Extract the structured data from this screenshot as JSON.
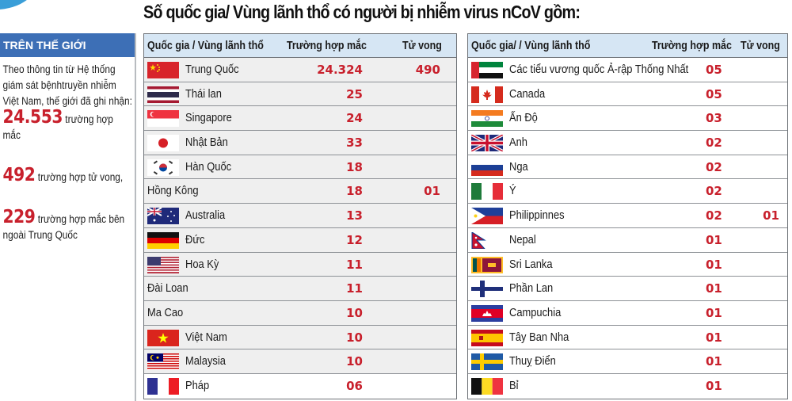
{
  "title": "Số quốc gia/ Vùng lãnh thổ có người bị nhiễm virus nCoV gồm:",
  "sidebar": {
    "header": "TRÊN THẾ GIỚI",
    "intro": "Theo thông tin từ Hệ thống giám sát bệnhtruyền nhiễm Việt Nam, thế giới đã ghi nhận:",
    "stats": [
      {
        "value": "24.553",
        "label": "trường hợp mắc"
      },
      {
        "value": "492",
        "label": "trường hợp  tử vong,"
      },
      {
        "value": "229",
        "label": "trường hợp  mắc bên ngoài Trung Quốc"
      }
    ]
  },
  "colors": {
    "accent_red": "#c8202c",
    "header_blue": "#3d6fb6",
    "table_header_bg": "#d6e6f4",
    "row_grey": "#efefef"
  },
  "left_table": {
    "headers": [
      "Quốc gia / Vùng lãnh thổ",
      "Trường hợp mắc",
      "Tử vong"
    ],
    "rows": [
      {
        "flag": "china-flag",
        "name": "Trung Quốc",
        "cases": "24.324",
        "deaths": "490"
      },
      {
        "flag": "thailand-flag",
        "name": "Thái lan",
        "cases": "25",
        "deaths": ""
      },
      {
        "flag": "singapore-flag",
        "name": "Singapore",
        "cases": "24",
        "deaths": ""
      },
      {
        "flag": "japan-flag",
        "name": "Nhật Bản",
        "cases": "33",
        "deaths": ""
      },
      {
        "flag": "south-korea-flag",
        "name": "Hàn Quốc",
        "cases": "18",
        "deaths": ""
      },
      {
        "flag": "",
        "name": "Hồng Kông",
        "cases": "18",
        "deaths": "01"
      },
      {
        "flag": "australia-flag",
        "name": "Australia",
        "cases": "13",
        "deaths": ""
      },
      {
        "flag": "germany-flag",
        "name": "Đức",
        "cases": "12",
        "deaths": ""
      },
      {
        "flag": "usa-flag",
        "name": "Hoa Kỳ",
        "cases": "11",
        "deaths": ""
      },
      {
        "flag": "",
        "name": "Đài Loan",
        "cases": "11",
        "deaths": ""
      },
      {
        "flag": "",
        "name": "Ma Cao",
        "cases": "10",
        "deaths": ""
      },
      {
        "flag": "vietnam-flag",
        "name": "Việt Nam",
        "cases": "10",
        "deaths": ""
      },
      {
        "flag": "malaysia-flag",
        "name": "Malaysia",
        "cases": "10",
        "deaths": ""
      },
      {
        "flag": "france-flag",
        "name": "Pháp",
        "cases": "06",
        "deaths": ""
      }
    ]
  },
  "right_table": {
    "headers": [
      "Quốc gia/ / Vùng lãnh thổ",
      "Trường hợp mắc",
      "Tử vong"
    ],
    "rows": [
      {
        "flag": "uae-flag",
        "name": "Các tiểu vương quốc Ả-rập Thống Nhất",
        "cases": "05",
        "deaths": ""
      },
      {
        "flag": "canada-flag",
        "name": "Canada",
        "cases": "05",
        "deaths": ""
      },
      {
        "flag": "india-flag",
        "name": "Ấn Độ",
        "cases": "03",
        "deaths": ""
      },
      {
        "flag": "uk-flag",
        "name": "Anh",
        "cases": "02",
        "deaths": ""
      },
      {
        "flag": "russia-flag",
        "name": "Nga",
        "cases": "02",
        "deaths": ""
      },
      {
        "flag": "italy-flag",
        "name": "Ý",
        "cases": "02",
        "deaths": ""
      },
      {
        "flag": "philippines-flag",
        "name": "Philippinnes",
        "cases": "02",
        "deaths": "01"
      },
      {
        "flag": "nepal-flag",
        "name": "Nepal",
        "cases": "01",
        "deaths": ""
      },
      {
        "flag": "sri-lanka-flag",
        "name": "Sri Lanka",
        "cases": "01",
        "deaths": ""
      },
      {
        "flag": "finland-flag",
        "name": "Phần Lan",
        "cases": "01",
        "deaths": ""
      },
      {
        "flag": "cambodia-flag",
        "name": "Campuchia",
        "cases": "01",
        "deaths": ""
      },
      {
        "flag": "spain-flag",
        "name": "Tây Ban Nha",
        "cases": "01",
        "deaths": ""
      },
      {
        "flag": "sweden-flag",
        "name": "Thuỵ Điển",
        "cases": "01",
        "deaths": ""
      },
      {
        "flag": "belgium-flag",
        "name": "Bỉ",
        "cases": "01",
        "deaths": ""
      }
    ]
  }
}
